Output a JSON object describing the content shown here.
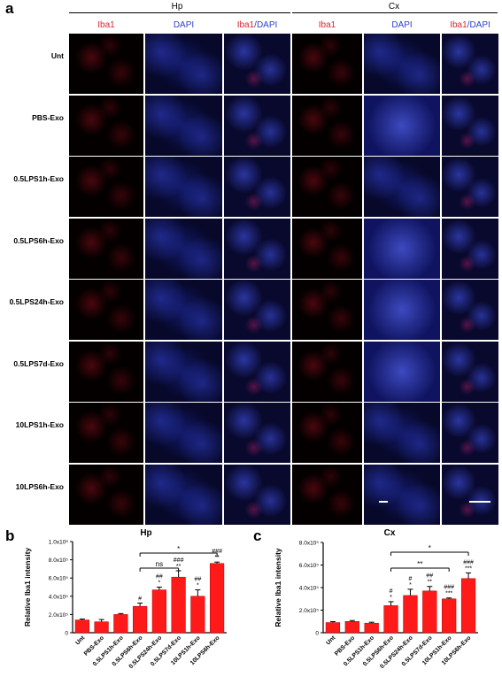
{
  "panel_a": {
    "letter": "a",
    "groups": [
      {
        "title": "Hp",
        "columns": [
          "Iba1",
          "DAPI",
          "Iba1/DAPI"
        ]
      },
      {
        "title": "Cx",
        "columns": [
          "Iba1",
          "DAPI",
          "Iba1/DAPI"
        ]
      }
    ],
    "rows": [
      "Unt",
      "PBS-Exo",
      "0.5LPS1h-Exo",
      "0.5LPS6h-Exo",
      "0.5LPS24h-Exo",
      "0.5LPS7d-Exo",
      "10LPS1h-Exo",
      "10LPS6h-Exo"
    ],
    "colors": {
      "red": "#d6262e",
      "blue": "#2b3fd1"
    }
  },
  "chart_data": [
    {
      "panel": "b",
      "type": "bar",
      "title": "Hp",
      "ylabel": "Relative Iba1 intensity",
      "xlabel": "",
      "ylim": [
        0,
        1000000
      ],
      "yticks": [
        "0",
        "2.0x10⁵",
        "4.0x10⁵",
        "6.0x10⁵",
        "8.0x10⁵",
        "1.0x10⁶"
      ],
      "categories": [
        "Unt",
        "PBS-Exo",
        "0.5LPS1h-Exo",
        "0.5LPS6h-Exo",
        "0.5LPS24h-Exo",
        "0.5LPS7d-Exo",
        "10LPS1h-Exo",
        "10LPS6h-Exo"
      ],
      "values": [
        140000,
        120000,
        200000,
        290000,
        470000,
        610000,
        400000,
        760000
      ],
      "errors": [
        10000,
        25000,
        10000,
        35000,
        30000,
        70000,
        70000,
        15000
      ],
      "annotations": [
        [
          "",
          ""
        ],
        [
          "",
          ""
        ],
        [
          "",
          ""
        ],
        [
          "#",
          ""
        ],
        [
          "##",
          "*"
        ],
        [
          "###",
          "**"
        ],
        [
          "##",
          "*"
        ],
        [
          "###",
          "**"
        ]
      ],
      "brackets": [
        {
          "from": 3,
          "to": 7,
          "label": "*"
        },
        {
          "from": 3,
          "to": 5,
          "label": "ns"
        }
      ],
      "bar_color": "#ff1a1a"
    },
    {
      "panel": "c",
      "type": "bar",
      "title": "Cx",
      "ylabel": "Relative Iba1 intensity",
      "xlabel": "",
      "ylim": [
        0,
        800000
      ],
      "yticks": [
        "0",
        "2.0x10⁵",
        "4.0x10⁵",
        "6.0x10⁵",
        "8.0x10⁵"
      ],
      "categories": [
        "Unt",
        "PBS-Exo",
        "0.5LPS1h-Exo",
        "0.5LPS6h-Exo",
        "0.5LPS24h-Exo",
        "0.5LPS7d-Exo",
        "10LPS1h-Exo",
        "10LPS6h-Exo"
      ],
      "values": [
        90000,
        100000,
        85000,
        240000,
        330000,
        370000,
        300000,
        480000
      ],
      "errors": [
        8000,
        8000,
        8000,
        35000,
        55000,
        40000,
        8000,
        50000
      ],
      "annotations": [
        [
          "",
          ""
        ],
        [
          "",
          ""
        ],
        [
          "",
          ""
        ],
        [
          "#",
          "*"
        ],
        [
          "#",
          "*"
        ],
        [
          "##",
          "**"
        ],
        [
          "###",
          "***"
        ],
        [
          "###",
          "***"
        ]
      ],
      "brackets": [
        {
          "from": 3,
          "to": 7,
          "label": "*"
        },
        {
          "from": 3,
          "to": 6,
          "label": "**"
        }
      ],
      "bar_color": "#ff1a1a"
    }
  ]
}
